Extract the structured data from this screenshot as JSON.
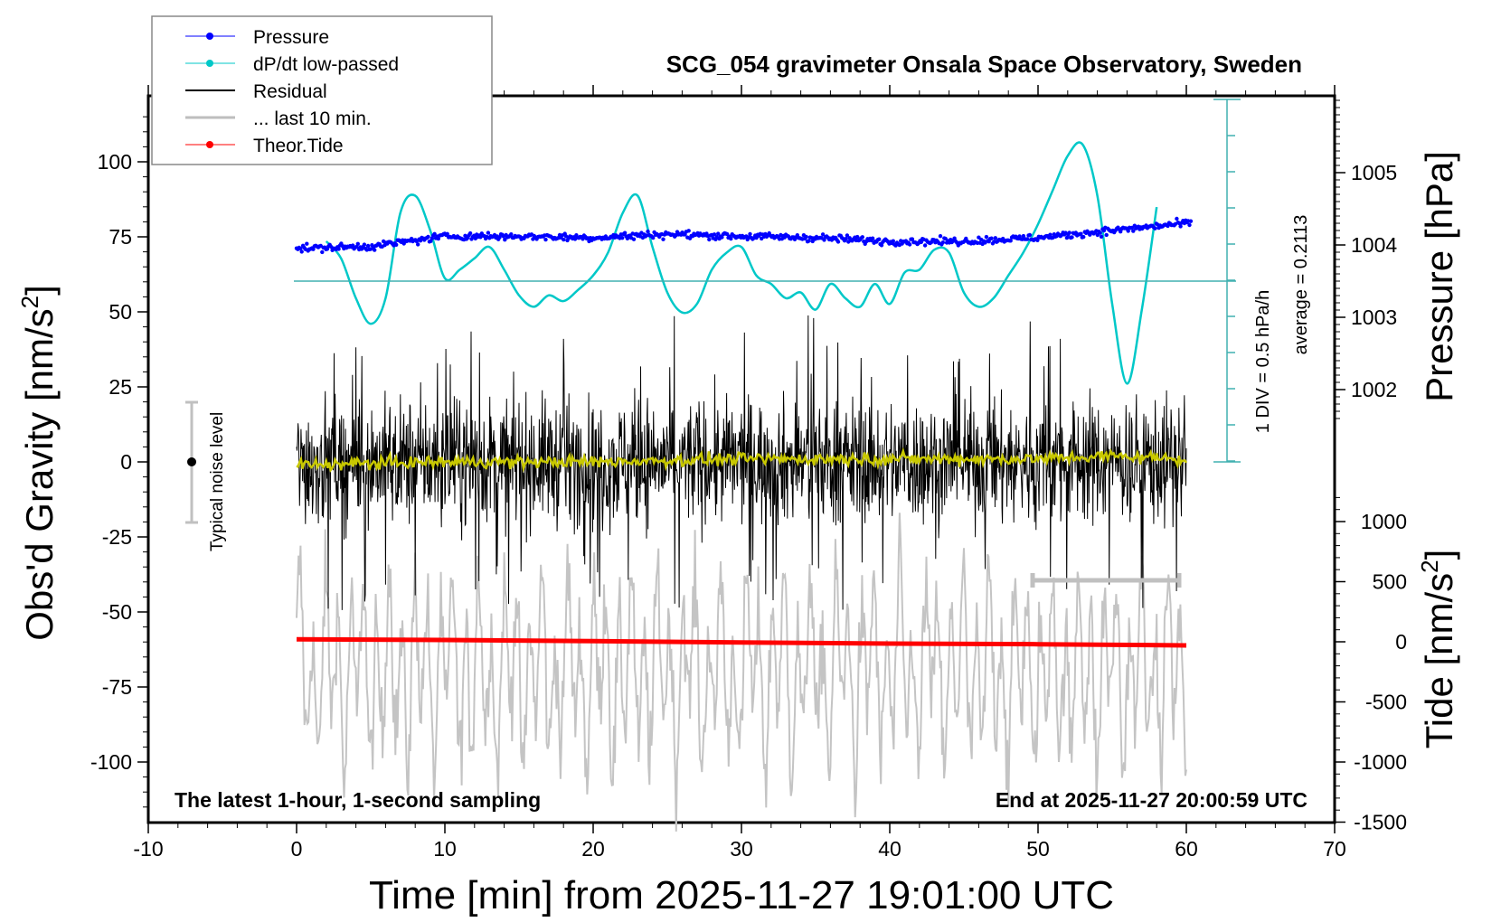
{
  "chart_data": {
    "type": "line",
    "title": "SCG_054 gravimeter Onsala Space Observatory, Sweden",
    "xlabel": "Time [min] from 2025-11-27 19:01:00 UTC",
    "ylabel_left": "Obs'd Gravity [nm/s",
    "ylabel_left_sup": "2",
    "ylabel_left_close": "]",
    "ylabel_right_pressure": "Pressure [hPa]",
    "ylabel_right_tide": "Tide [nm/s",
    "ylabel_right_tide_sup": "2",
    "ylabel_right_tide_close": "]",
    "xlim": [
      -10,
      70
    ],
    "ylim_gravity": [
      -120,
      120
    ],
    "ylim_pressure_visible": [
      1001,
      1006
    ],
    "ylim_tide": [
      -1500,
      1500
    ],
    "x_ticks": [
      "-10",
      "0",
      "10",
      "20",
      "30",
      "40",
      "50",
      "60",
      "70"
    ],
    "y_ticks_gravity": [
      "100",
      "75",
      "50",
      "25",
      "0",
      "-25",
      "-50",
      "-75",
      "-100"
    ],
    "y_ticks_pressure": [
      "1005",
      "1004",
      "1003",
      "1002"
    ],
    "y_ticks_tide": [
      "1000",
      "500",
      "0",
      "-500",
      "-1000",
      "-1500"
    ],
    "grid": false,
    "legend_position": "top-left",
    "legend": [
      {
        "label": "Pressure",
        "color": "#0000ff",
        "marker": "dot"
      },
      {
        "label": "dP/dt low-passed",
        "color": "#00c8c8",
        "marker": "dot"
      },
      {
        "label": "Residual",
        "color": "#000000",
        "marker": "line"
      },
      {
        "label": "... last 10 min.",
        "color": "#bebebe",
        "marker": "line"
      },
      {
        "label": "Theor.Tide",
        "color": "#ff0000",
        "marker": "dot"
      }
    ],
    "annotations": {
      "bottom_left": "The latest 1-hour, 1-second sampling",
      "bottom_right": "End at 2025-11-27 20:00:59 UTC",
      "noise_label": "Typical noise level",
      "noise_range_nm_s2": [
        -20,
        20
      ],
      "dpdt_scale": "1 DIV = 0.5 hPa/h",
      "dpdt_average": "average = 0.2113",
      "last_10min_marker_min": [
        50,
        60
      ]
    },
    "series": [
      {
        "name": "Pressure",
        "unit": "hPa",
        "color": "#0000ff",
        "x": [
          0,
          5,
          10,
          15,
          20,
          25,
          30,
          35,
          40,
          45,
          50,
          55,
          60
        ],
        "values": [
          1003.95,
          1003.98,
          1004.12,
          1004.12,
          1004.1,
          1004.15,
          1004.12,
          1004.1,
          1004.05,
          1004.05,
          1004.1,
          1004.2,
          1004.3
        ]
      },
      {
        "name": "dP/dt low-passed",
        "unit": "hPa/h",
        "color": "#00c8c8",
        "x": [
          2,
          3,
          4,
          5,
          6,
          7,
          8,
          9,
          10,
          11,
          12,
          13,
          14,
          15,
          16,
          17,
          18,
          19,
          20,
          21,
          22,
          23,
          24,
          25,
          26,
          27,
          28,
          29,
          30,
          31,
          32,
          33,
          34,
          35,
          36,
          37,
          38,
          39,
          40,
          41,
          42,
          43,
          44,
          45,
          46,
          47,
          48,
          49,
          50,
          51,
          52,
          53,
          54,
          55,
          56,
          57,
          58
        ],
        "values": [
          0.7,
          0.4,
          -0.3,
          -0.75,
          -0.3,
          1.2,
          1.5,
          0.9,
          0.05,
          0.2,
          0.4,
          0.6,
          0.2,
          -0.25,
          -0.45,
          -0.25,
          -0.35,
          -0.15,
          0.1,
          0.5,
          1.2,
          1.5,
          0.6,
          -0.2,
          -0.55,
          -0.4,
          0.2,
          0.5,
          0.6,
          0.1,
          -0.05,
          -0.3,
          -0.2,
          -0.5,
          -0.05,
          -0.3,
          -0.45,
          -0.05,
          -0.4,
          0.15,
          0.2,
          0.55,
          0.5,
          -0.2,
          -0.45,
          -0.3,
          0.1,
          0.5,
          1.0,
          1.6,
          2.2,
          2.4,
          1.5,
          -0.4,
          -1.8,
          -0.5,
          1.3
        ]
      },
      {
        "name": "Residual",
        "unit": "nm/s2",
        "color": "#000000",
        "x_range": [
          0,
          60
        ],
        "amplitude_typical": 30,
        "spikes_max": 45
      },
      {
        "name": "Residual smoothed",
        "unit": "nm/s2",
        "color": "#c8c800",
        "x": [
          0,
          10,
          20,
          30,
          40,
          50,
          55,
          60
        ],
        "values": [
          -1,
          0,
          0,
          1,
          1,
          1,
          2,
          1
        ]
      },
      {
        "name": "... last 10 min.",
        "unit": "nm/s2",
        "color": "#bebebe",
        "x_range": [
          0,
          60
        ],
        "offset_nm_s2": -70,
        "amplitude_typical": 25
      },
      {
        "name": "Theor.Tide",
        "unit": "nm/s2",
        "color": "#ff0000",
        "x": [
          0,
          10,
          20,
          30,
          40,
          50,
          60
        ],
        "values": [
          20,
          15,
          5,
          -5,
          -15,
          -20,
          -30
        ]
      }
    ]
  }
}
